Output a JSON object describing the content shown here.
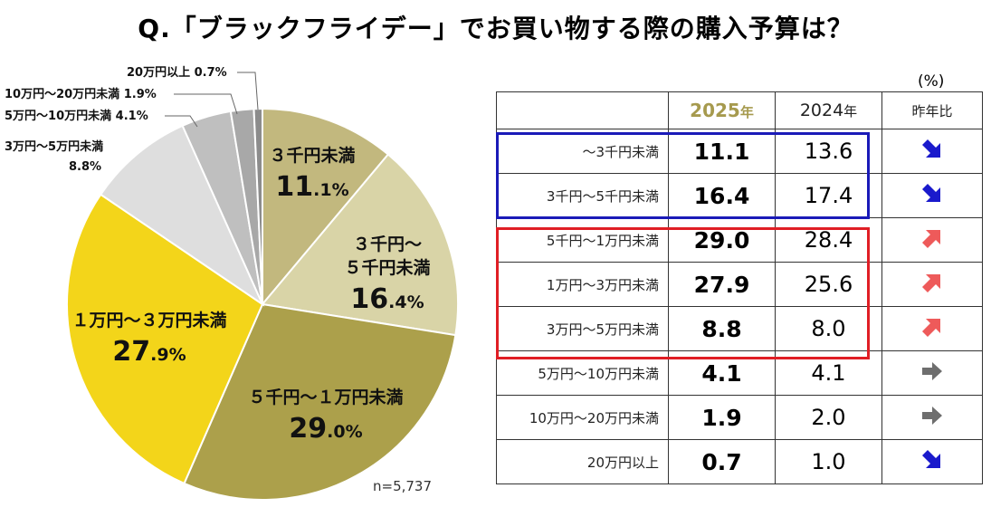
{
  "title": "Q.「ブラックフライデー」でお買い物する際の購入予算は？",
  "colors": {
    "down_arrow": "#1a1acc",
    "up_arrow": "#ee5a5a",
    "flat_arrow": "#6e6e6e",
    "frame_blue": "#1a1ab8",
    "frame_red": "#e01e25",
    "header_2025": "#a69a4e"
  },
  "chart_data": {
    "type": "pie",
    "title": "Q.「ブラックフライデー」でお買い物する際の購入予算は？",
    "sample_size": "n=5,737",
    "slices": [
      {
        "label": "３千円未満",
        "value": 11.1,
        "color": "#c2b87e",
        "inside": true
      },
      {
        "label": "３千円～\n５千円未満",
        "value": 16.4,
        "color": "#d9d4a7",
        "inside": true
      },
      {
        "label": "５千円～１万円未満",
        "value": 29.0,
        "color": "#aca04b",
        "inside": true
      },
      {
        "label": "１万円～３万円未満",
        "value": 27.9,
        "color": "#f3d51a",
        "inside": true
      },
      {
        "label": "3万円～5万円未満",
        "value": 8.8,
        "color": "#dedede",
        "inside": false
      },
      {
        "label": "5万円～10万円未満",
        "value": 4.1,
        "color": "#bfbfbf",
        "inside": false
      },
      {
        "label": "10万円～20万円未満",
        "value": 1.9,
        "color": "#a8a8a8",
        "inside": false
      },
      {
        "label": "20万円以上",
        "value": 0.7,
        "color": "#8c8c8c",
        "inside": false
      }
    ],
    "outside_labels": [
      "3万円～5万円未満",
      "8.8%",
      "5万円～10万円未満 4.1%",
      "10万円～20万円未満 1.9%",
      "20万円以上 0.7%"
    ]
  },
  "table": {
    "unit": "(%)",
    "headers": {
      "label": "",
      "y2025_num": "2025",
      "y2025_suffix": "年",
      "y2024_num": "2024",
      "y2024_suffix": "年",
      "yoy": "昨年比"
    },
    "rows": [
      {
        "label": "～3千円未満",
        "v2025": "11.1",
        "v2024": "13.6",
        "trend": "down"
      },
      {
        "label": "3千円～5千円未満",
        "v2025": "16.4",
        "v2024": "17.4",
        "trend": "down"
      },
      {
        "label": "5千円～1万円未満",
        "v2025": "29.0",
        "v2024": "28.4",
        "trend": "up"
      },
      {
        "label": "1万円～3万円未満",
        "v2025": "27.9",
        "v2024": "25.6",
        "trend": "up"
      },
      {
        "label": "3万円～5万円未満",
        "v2025": "8.8",
        "v2024": "8.0",
        "trend": "up"
      },
      {
        "label": "5万円～10万円未満",
        "v2025": "4.1",
        "v2024": "4.1",
        "trend": "flat"
      },
      {
        "label": "10万円～20万円未満",
        "v2025": "1.9",
        "v2024": "2.0",
        "trend": "flat"
      },
      {
        "label": "20万円以上",
        "v2025": "0.7",
        "v2024": "1.0",
        "trend": "down"
      }
    ]
  }
}
